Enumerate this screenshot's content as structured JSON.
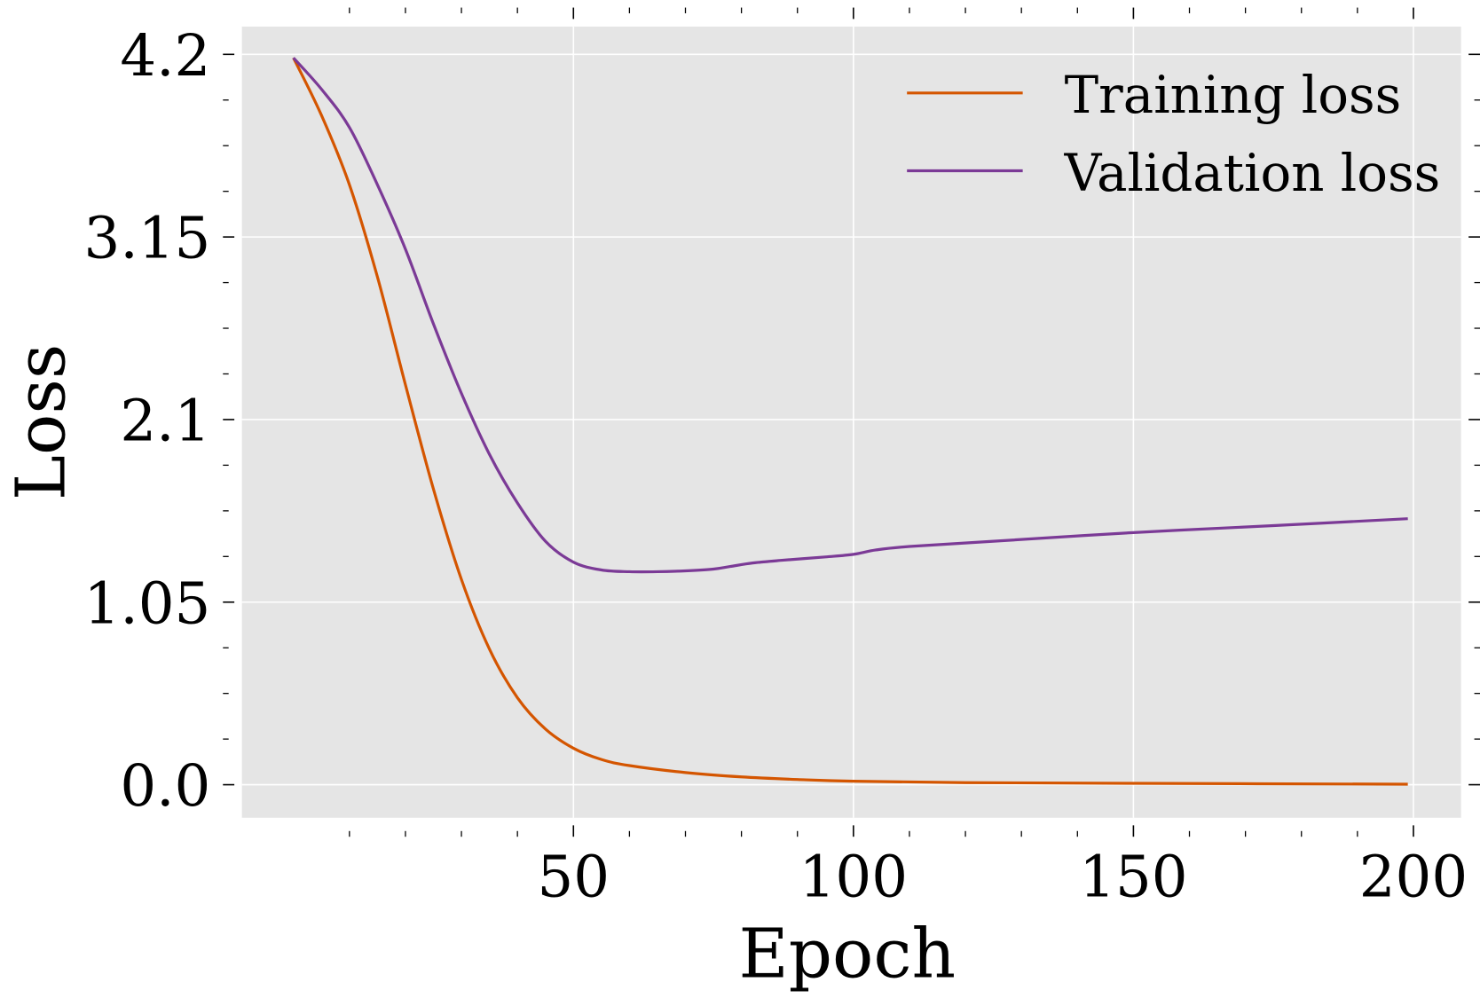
{
  "chart_data": {
    "type": "line",
    "title": "",
    "xlabel": "Epoch",
    "ylabel": "Loss",
    "xlim": [
      -9.2,
      208.5
    ],
    "ylim": [
      -0.19,
      4.36
    ],
    "xticks": [
      50,
      100,
      150,
      200
    ],
    "yticks": [
      0.0,
      1.05,
      2.1,
      3.15,
      4.2
    ],
    "ytick_labels": [
      "0.0",
      "1.05",
      "2.1",
      "3.15",
      "4.2"
    ],
    "grid": true,
    "background": "#e5e5e5",
    "legend_position": "top-right",
    "series": [
      {
        "name": "Training loss",
        "color": "#d45500",
        "x": [
          0,
          5,
          10,
          15,
          20,
          25,
          30,
          35,
          40,
          45,
          50,
          55,
          60,
          70,
          80,
          90,
          100,
          120,
          150,
          199
        ],
        "y": [
          4.18,
          3.85,
          3.45,
          2.92,
          2.3,
          1.7,
          1.18,
          0.78,
          0.5,
          0.32,
          0.21,
          0.145,
          0.11,
          0.07,
          0.045,
          0.03,
          0.02,
          0.012,
          0.008,
          0.003
        ]
      },
      {
        "name": "Validation loss",
        "color": "#7b3a96",
        "x": [
          0,
          5,
          10,
          15,
          20,
          25,
          30,
          35,
          40,
          45,
          50,
          55,
          60,
          65,
          70,
          75,
          78,
          82,
          87,
          95,
          100,
          104,
          110,
          125,
          150,
          175,
          199
        ],
        "y": [
          4.18,
          4.0,
          3.78,
          3.45,
          3.08,
          2.65,
          2.25,
          1.9,
          1.62,
          1.4,
          1.28,
          1.235,
          1.225,
          1.225,
          1.23,
          1.24,
          1.255,
          1.275,
          1.29,
          1.31,
          1.325,
          1.35,
          1.37,
          1.4,
          1.45,
          1.49,
          1.53
        ]
      }
    ]
  }
}
